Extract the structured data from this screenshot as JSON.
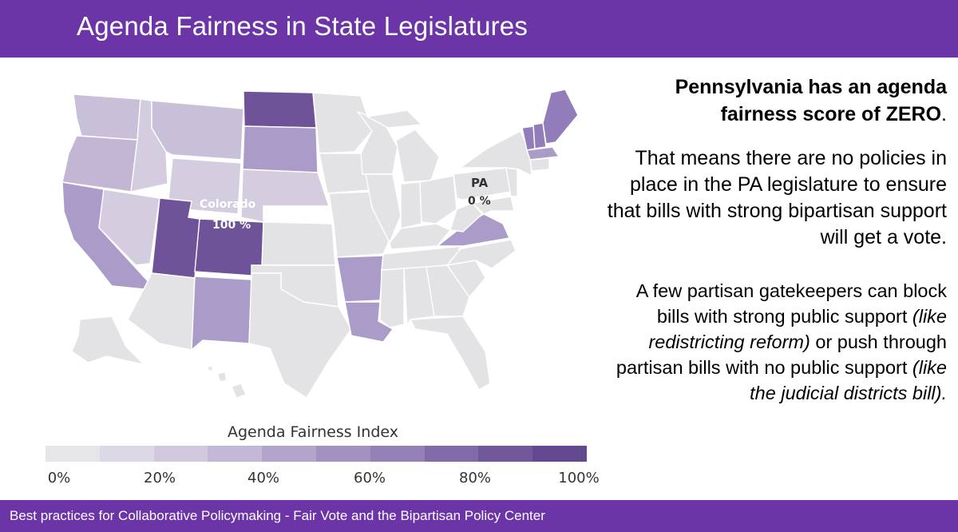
{
  "header": {
    "title": "Agenda Fairness in State Legislatures"
  },
  "footer": {
    "text": "Best practices for Collaborative Policymaking - Fair Vote and the Bipartisan Policy Center"
  },
  "map": {
    "labels": {
      "colorado_name": "Colorado",
      "colorado_value": "100 %",
      "pa_name": "PA",
      "pa_value": "0 %"
    },
    "legend": {
      "title": "Agenda Fairness Index",
      "ticks": [
        "0%",
        "20%",
        "40%",
        "60%",
        "80%",
        "100%"
      ],
      "colors": [
        "#e6e6e9",
        "#dcd8e6",
        "#d0c8de",
        "#c2b7d6",
        "#b3a4cc",
        "#a391c2",
        "#9280b7",
        "#806ba8",
        "#70589b",
        "#634a90"
      ]
    },
    "colors": {
      "base": "#e3e3e6",
      "light": "#d4cde0",
      "light_mid": "#c2b6d4",
      "mid": "#ab9bc8",
      "mid_dark": "#927cba",
      "dark": "#6e5399"
    }
  },
  "panel": {
    "lead_bold": "Pennsylvania has an agenda fairness score of ZERO",
    "lead_tail": ".",
    "para1": "That means there are no policies in place in the PA legislature to ensure that bills with strong bipartisan support will get a vote.",
    "para2_a": "A few partisan gatekeepers can block bills with strong public support ",
    "para2_b": "(like redistricting reform)",
    "para2_c": " or push through partisan bills with no public support ",
    "para2_d": "(like the judicial districts bill)",
    "para2_e": "."
  }
}
